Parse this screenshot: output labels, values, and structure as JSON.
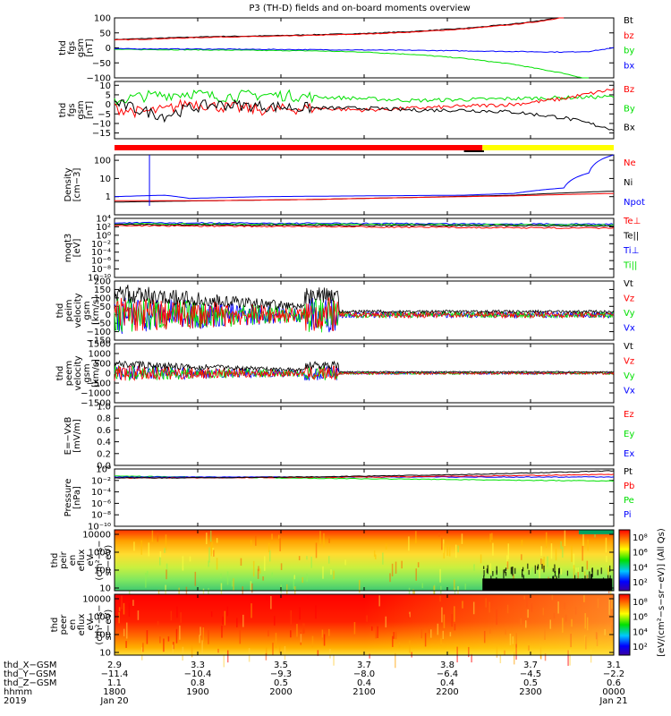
{
  "title": "P3 (TH-D) fields and on-board moments overview",
  "colors": {
    "black": "#000000",
    "red": "#ff0000",
    "green": "#00e000",
    "blue": "#0000ff",
    "yellow": "#ffff00"
  },
  "chart_data": [
    {
      "type": "line",
      "id": "fgs_gsm",
      "ylabel": [
        "thd",
        "fgs",
        "gsm",
        "[nT]"
      ],
      "ylim": [
        -100,
        100
      ],
      "ticks": [
        "100",
        "50",
        "0",
        "−50",
        "−100"
      ],
      "tick_values": [
        100,
        50,
        0,
        -50,
        -100
      ],
      "legend": [
        {
          "name": "Bt",
          "color": "#000000"
        },
        {
          "name": "bz",
          "color": "#ff0000"
        },
        {
          "name": "by",
          "color": "#00e000"
        },
        {
          "name": "bx",
          "color": "#0000ff"
        }
      ],
      "series": [
        {
          "name": "Bt",
          "color": "#000000",
          "x": [
            0,
            0.1,
            0.2,
            0.3,
            0.4,
            0.5,
            0.6,
            0.7,
            0.8,
            0.85,
            0.9
          ],
          "y": [
            28,
            33,
            38,
            40,
            44,
            48,
            55,
            65,
            80,
            90,
            105
          ]
        },
        {
          "name": "bz",
          "color": "#ff0000",
          "x": [
            0,
            0.1,
            0.2,
            0.3,
            0.4,
            0.5,
            0.6,
            0.7,
            0.8,
            0.85,
            0.9
          ],
          "y": [
            26,
            31,
            36,
            38,
            42,
            46,
            53,
            63,
            78,
            88,
            103
          ]
        },
        {
          "name": "by",
          "color": "#00e000",
          "x": [
            0,
            0.2,
            0.4,
            0.5,
            0.6,
            0.7,
            0.8,
            0.9,
            0.95
          ],
          "y": [
            -5,
            -7,
            -10,
            -14,
            -22,
            -35,
            -55,
            -85,
            -105
          ]
        },
        {
          "name": "bx",
          "color": "#0000ff",
          "x": [
            0,
            0.2,
            0.4,
            0.6,
            0.8,
            0.9,
            0.95,
            1.0
          ],
          "y": [
            -3,
            -4,
            -6,
            -8,
            -12,
            -14,
            -12,
            0
          ]
        }
      ]
    },
    {
      "type": "line",
      "id": "fgs_gsm_zoom",
      "ylabel": [
        "thd",
        "fgs",
        "gsm",
        "[nT]"
      ],
      "ylim": [
        -18,
        12
      ],
      "ticks": [
        "10",
        "5",
        "0",
        "−5",
        "−10",
        "−15"
      ],
      "tick_values": [
        10,
        5,
        0,
        -5,
        -10,
        -15
      ],
      "legend": [
        {
          "name": "Bz",
          "color": "#ff0000"
        },
        {
          "name": "By",
          "color": "#00e000"
        },
        {
          "name": "Bx",
          "color": "#000000"
        }
      ],
      "series": [
        {
          "name": "By",
          "color": "#00e000",
          "x": [
            0,
            0.05,
            0.1,
            0.15,
            0.2,
            0.3,
            0.4,
            0.5,
            0.6,
            0.7,
            0.8,
            0.9,
            1.0
          ],
          "y": [
            2,
            4,
            5,
            6,
            4,
            5,
            4,
            3,
            2,
            2.5,
            3,
            3.5,
            4
          ]
        },
        {
          "name": "Bz",
          "color": "#ff0000",
          "x": [
            0,
            0.05,
            0.1,
            0.15,
            0.2,
            0.3,
            0.4,
            0.5,
            0.6,
            0.7,
            0.8,
            0.9,
            1.0
          ],
          "y": [
            -2,
            -4,
            -3,
            1,
            -1,
            -3,
            -2,
            -3,
            -2,
            -1,
            0,
            3,
            8
          ]
        },
        {
          "name": "Bx",
          "color": "#000000",
          "x": [
            0,
            0.05,
            0.1,
            0.15,
            0.2,
            0.3,
            0.4,
            0.5,
            0.6,
            0.7,
            0.8,
            0.9,
            1.0
          ],
          "y": [
            1,
            -3,
            -6,
            -2,
            0,
            -1,
            -2,
            -2,
            -3,
            -3,
            -4,
            -7,
            -13
          ]
        }
      ]
    },
    {
      "type": "line",
      "id": "density",
      "ylabel": [
        "Density",
        "[cm−3]"
      ],
      "log": true,
      "ylim": [
        0.1,
        200
      ],
      "ticks": [
        "100",
        "10",
        "1"
      ],
      "tick_values": [
        100,
        10,
        1
      ],
      "legend": [
        {
          "name": "Ne",
          "color": "#ff0000"
        },
        {
          "name": "Ni",
          "color": "#000000"
        },
        {
          "name": "Npot",
          "color": "#0000ff"
        }
      ],
      "series": [
        {
          "name": "Npot",
          "color": "#0000ff",
          "x": [
            0,
            0.1,
            0.15,
            0.3,
            0.5,
            0.7,
            0.8,
            0.9,
            0.95,
            1.0
          ],
          "y": [
            1,
            1.2,
            0.8,
            1,
            1.1,
            1.2,
            1.5,
            3,
            20,
            200
          ]
        },
        {
          "name": "Ni",
          "color": "#000000",
          "x": [
            0,
            0.2,
            0.4,
            0.6,
            0.8,
            0.9,
            1.0
          ],
          "y": [
            0.5,
            0.6,
            0.7,
            0.9,
            1.2,
            1.6,
            2
          ]
        },
        {
          "name": "Ne",
          "color": "#ff0000",
          "x": [
            0,
            0.2,
            0.4,
            0.6,
            0.8,
            0.9,
            1.0
          ],
          "y": [
            0.6,
            0.6,
            0.7,
            0.9,
            1.1,
            1.3,
            1.5
          ]
        }
      ]
    },
    {
      "type": "line",
      "id": "temperature",
      "ylabel": [
        "moqt3",
        "[eV]"
      ],
      "log": true,
      "ticks": [
        "10⁴",
        "10²",
        "10⁰",
        "10⁻²",
        "10⁻⁴",
        "10⁻⁶",
        "10⁻⁸",
        "10⁻¹⁰"
      ],
      "legend": [
        {
          "name": "Te⊥",
          "color": "#ff0000"
        },
        {
          "name": "Te||",
          "color": "#000000"
        },
        {
          "name": "Ti⊥",
          "color": "#0000ff"
        },
        {
          "name": "Ti||",
          "color": "#00e000"
        }
      ]
    },
    {
      "type": "line",
      "id": "ion_velocity",
      "ylabel": [
        "thd",
        "peim",
        "velocity",
        "gsm",
        "[km/s]"
      ],
      "ylim": [
        -150,
        200
      ],
      "ticks": [
        "200",
        "150",
        "100",
        "50",
        "0",
        "−50",
        "−100",
        "−150"
      ],
      "tick_values": [
        200,
        150,
        100,
        50,
        0,
        -50,
        -100,
        -150
      ],
      "legend": [
        {
          "name": "Vt",
          "color": "#000000"
        },
        {
          "name": "Vz",
          "color": "#ff0000"
        },
        {
          "name": "Vy",
          "color": "#00e000"
        },
        {
          "name": "Vx",
          "color": "#0000ff"
        }
      ]
    },
    {
      "type": "line",
      "id": "electron_velocity",
      "ylabel": [
        "thd",
        "peem",
        "velocity",
        "gsm",
        "[km/s]"
      ],
      "ylim": [
        -1500,
        1500
      ],
      "ticks": [
        "1500",
        "1000",
        "500",
        "0",
        "−500",
        "−1000",
        "−1500"
      ],
      "tick_values": [
        1500,
        1000,
        500,
        0,
        -500,
        -1000,
        -1500
      ],
      "legend": [
        {
          "name": "Vt",
          "color": "#000000"
        },
        {
          "name": "Vz",
          "color": "#ff0000"
        },
        {
          "name": "Vy",
          "color": "#00e000"
        },
        {
          "name": "Vx",
          "color": "#0000ff"
        }
      ]
    },
    {
      "type": "line",
      "id": "efield",
      "ylabel": [
        "E=−VxB",
        "[mV/m]"
      ],
      "ylim": [
        0,
        1
      ],
      "ticks": [
        "1.0",
        "0.8",
        "0.6",
        "0.4",
        "0.2",
        "0.0"
      ],
      "tick_values": [
        1,
        0.8,
        0.6,
        0.4,
        0.2,
        0
      ],
      "legend": [
        {
          "name": "Ez",
          "color": "#ff0000"
        },
        {
          "name": "Ey",
          "color": "#00e000"
        },
        {
          "name": "Ex",
          "color": "#0000ff"
        }
      ]
    },
    {
      "type": "line",
      "id": "pressure",
      "ylabel": [
        "Pressure",
        "[nPa]"
      ],
      "log": true,
      "ticks": [
        "10⁰",
        "10⁻²",
        "10⁻⁴",
        "10⁻⁶",
        "10⁻⁸",
        "10⁻¹⁰"
      ],
      "legend": [
        {
          "name": "Pt",
          "color": "#000000"
        },
        {
          "name": "Pb",
          "color": "#ff0000"
        },
        {
          "name": "Pe",
          "color": "#00e000"
        },
        {
          "name": "Pi",
          "color": "#0000ff"
        }
      ]
    },
    {
      "type": "heatmap",
      "id": "ion_spectrogram",
      "ylabel": [
        "thd",
        "peir",
        "en",
        "eflux",
        "eV",
        "(cm²−s−",
        "sr−eV)"
      ],
      "ticks": [
        "10000",
        "1000",
        "100",
        "10"
      ],
      "tick_values": [
        10000,
        1000,
        100,
        10
      ],
      "colorbar": {
        "label": "[eV/(cm²−s−sr−eV)]",
        "ticks": [
          "10⁸",
          "10⁶",
          "10⁴",
          "10²"
        ]
      }
    },
    {
      "type": "heatmap",
      "id": "electron_spectrogram",
      "ylabel": [
        "thd",
        "peer",
        "en",
        "eflux",
        "eV",
        "(cm²−s−",
        "sr−eV)"
      ],
      "ticks": [
        "10000",
        "1000",
        "100",
        "10"
      ],
      "tick_values": [
        10000,
        1000,
        100,
        10
      ],
      "colorbar": {
        "label": "(All Qs)",
        "ticks": [
          "10⁸",
          "10⁶",
          "10⁴",
          "10²"
        ]
      }
    }
  ],
  "xaxis": {
    "rows": [
      {
        "label": "thd_X−GSM",
        "values": [
          "2.9",
          "3.3",
          "3.5",
          "3.7",
          "3.8",
          "3.7",
          "3.1"
        ]
      },
      {
        "label": "thd_Y−GSM",
        "values": [
          "−11.4",
          "−10.4",
          "−9.3",
          "−8.0",
          "−6.4",
          "−4.5",
          "−2.2"
        ]
      },
      {
        "label": "thd_Z−GSM",
        "values": [
          "1.1",
          "0.8",
          "0.5",
          "0.4",
          "0.4",
          "0.5",
          "0.6"
        ]
      },
      {
        "label": "hhmm",
        "values": [
          "1800",
          "1900",
          "2000",
          "2100",
          "2200",
          "2300",
          "0000"
        ]
      },
      {
        "label": "2019",
        "values": [
          "Jan 20",
          "",
          "",
          "",
          "",
          "",
          "Jan 21"
        ]
      }
    ]
  }
}
